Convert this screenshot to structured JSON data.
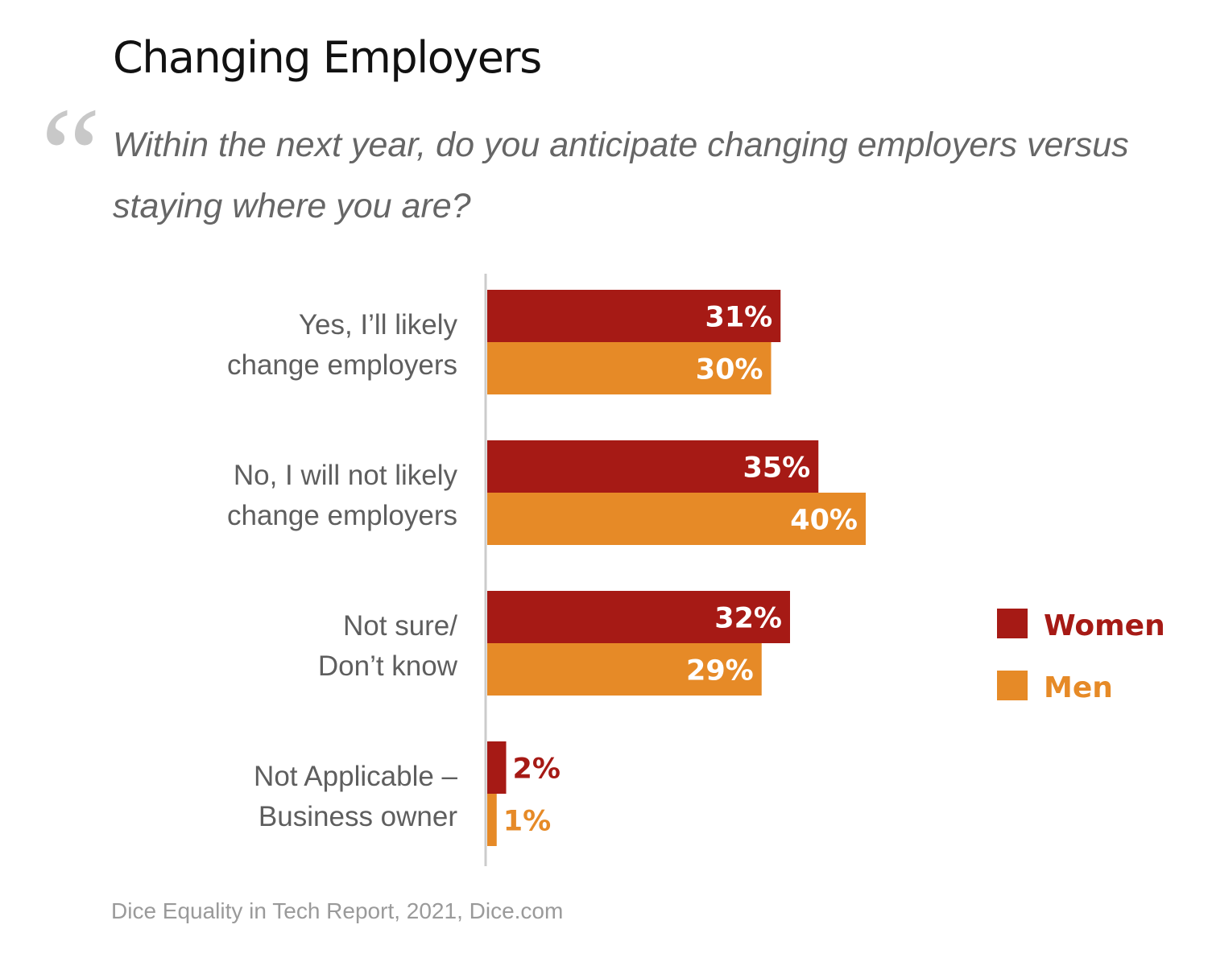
{
  "title": "Changing Employers",
  "quote_mark": "“",
  "question": "Within the next year, do you anticipate changing employers versus staying where you are?",
  "source": "Dice Equality in Tech Report, 2021, Dice.com",
  "colors": {
    "women": "#a61a15",
    "men": "#e68a27"
  },
  "chart_data": {
    "type": "bar",
    "orientation": "horizontal",
    "categories": [
      [
        "Yes, I’ll likely",
        "change employers"
      ],
      [
        "No, I will not likely",
        "change employers"
      ],
      [
        "Not sure/",
        "Don’t know"
      ],
      [
        "Not Applicable –",
        "Business owner"
      ]
    ],
    "series": [
      {
        "name": "Women",
        "values": [
          31,
          35,
          32,
          2
        ],
        "labels": [
          "31%",
          "35%",
          "32%",
          "2%"
        ]
      },
      {
        "name": "Men",
        "values": [
          30,
          40,
          29,
          1
        ],
        "labels": [
          "30%",
          "40%",
          "29%",
          "1%"
        ]
      }
    ],
    "unit": "%",
    "xlim": [
      0,
      40
    ],
    "legend": "right",
    "grid": false
  }
}
